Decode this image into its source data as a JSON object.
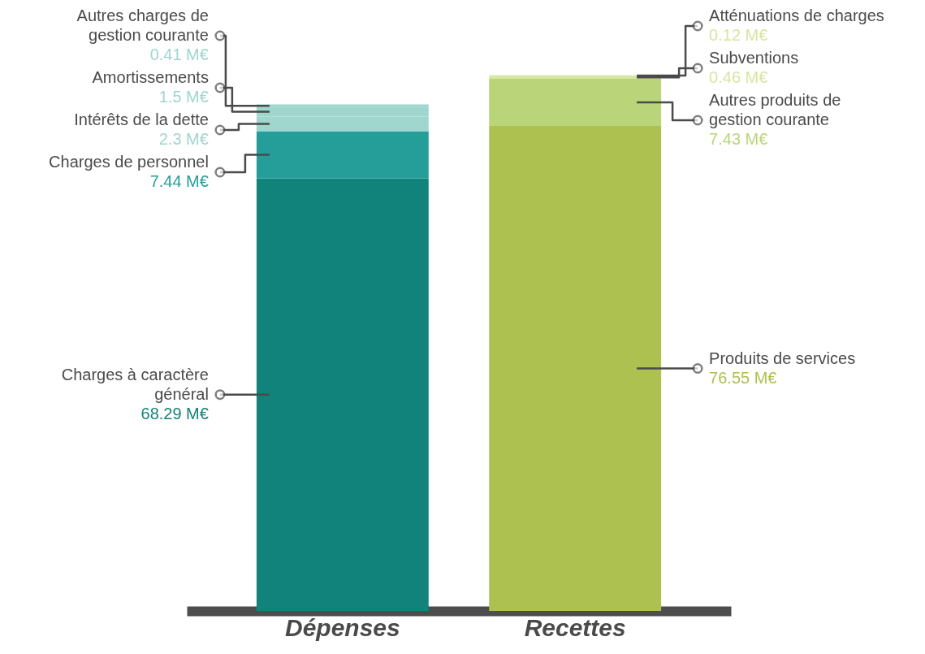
{
  "chart_data": {
    "type": "bar",
    "stacked": true,
    "categories": [
      "Dépenses",
      "Recettes"
    ],
    "tick_labels": "x",
    "series": [
      {
        "name": "Charges à caractère général",
        "color": "#12837a",
        "values": [
          68.29,
          null
        ],
        "value_labels": [
          "68.29 M€",
          null
        ]
      },
      {
        "name": "Charges de personnel",
        "color": "#259e9a",
        "values": [
          7.44,
          null
        ],
        "value_labels": [
          "7.44 M€",
          null
        ]
      },
      {
        "name": "Intérêts de la dette",
        "color": "#9fd6ce",
        "values": [
          2.3,
          null
        ],
        "value_labels": [
          "2.3 M€",
          null
        ]
      },
      {
        "name": "Amortissements",
        "color": "#9fd6ce",
        "values": [
          1.5,
          null
        ],
        "value_labels": [
          "1.5 M€",
          null
        ]
      },
      {
        "name": "Autres charges de gestion courante",
        "color": "#9fd6ce",
        "values": [
          0.41,
          null
        ],
        "value_labels": [
          "0.41 M€",
          null
        ]
      },
      {
        "name": "Produits de services",
        "color": "#acc14f",
        "values": [
          null,
          76.55
        ],
        "value_labels": [
          null,
          "76.55 M€"
        ]
      },
      {
        "name": "Autres produits de gestion courante",
        "color": "#bad579",
        "values": [
          null,
          7.43
        ],
        "value_labels": [
          null,
          "7.43 M€"
        ]
      },
      {
        "name": "Subventions",
        "color": "#d6e6a0",
        "values": [
          null,
          0.46
        ],
        "value_labels": [
          null,
          "0.46 M€"
        ]
      },
      {
        "name": "Atténuations de charges",
        "color": "#d6e6a0",
        "values": [
          null,
          0.12
        ],
        "value_labels": [
          null,
          "0.12 M€"
        ]
      }
    ]
  }
}
